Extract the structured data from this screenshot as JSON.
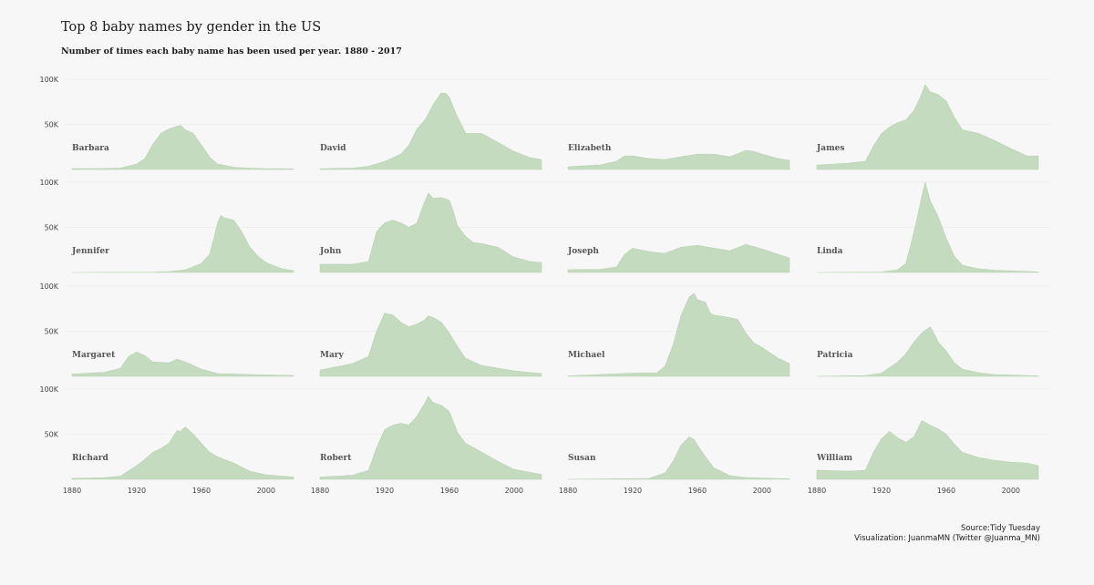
{
  "chart_data": {
    "type": "area",
    "title": "Top 8 baby names by gender in the US",
    "subtitle": "Number of times each baby name has been used per year. 1880 - 2017",
    "caption_source": "Source:Tidy Tuesday",
    "caption_credit": "Visualization: JuanmaMN (Twitter @Juanma_MN)",
    "x_range": [
      1880,
      2017
    ],
    "x_ticks": [
      1880,
      1920,
      1960,
      2000
    ],
    "y_range": [
      0,
      100000
    ],
    "y_ticks": [
      {
        "value": 100000,
        "label": "100K"
      },
      {
        "value": 50000,
        "label": "50K"
      }
    ],
    "grid": true,
    "layout": {
      "rows": 4,
      "cols": 4
    },
    "series": [
      {
        "name": "Barbara",
        "points": [
          [
            1880,
            1000
          ],
          [
            1900,
            1100
          ],
          [
            1910,
            1600
          ],
          [
            1920,
            6000
          ],
          [
            1925,
            12000
          ],
          [
            1930,
            28000
          ],
          [
            1935,
            40000
          ],
          [
            1940,
            45000
          ],
          [
            1947,
            49000
          ],
          [
            1950,
            44000
          ],
          [
            1955,
            40000
          ],
          [
            1960,
            27000
          ],
          [
            1965,
            14000
          ],
          [
            1970,
            6000
          ],
          [
            1980,
            2500
          ],
          [
            1990,
            1500
          ],
          [
            2000,
            900
          ],
          [
            2017,
            600
          ]
        ]
      },
      {
        "name": "David",
        "points": [
          [
            1880,
            800
          ],
          [
            1900,
            1500
          ],
          [
            1910,
            3500
          ],
          [
            1920,
            9000
          ],
          [
            1930,
            17000
          ],
          [
            1935,
            27000
          ],
          [
            1940,
            45000
          ],
          [
            1945,
            55000
          ],
          [
            1950,
            72000
          ],
          [
            1955,
            85000
          ],
          [
            1958,
            84000
          ],
          [
            1960,
            80000
          ],
          [
            1965,
            58000
          ],
          [
            1968,
            48000
          ],
          [
            1970,
            40000
          ],
          [
            1980,
            40000
          ],
          [
            1985,
            35000
          ],
          [
            1990,
            30000
          ],
          [
            2000,
            20000
          ],
          [
            2010,
            13000
          ],
          [
            2017,
            11000
          ]
        ]
      },
      {
        "name": "Elizabeth",
        "points": [
          [
            1880,
            3000
          ],
          [
            1900,
            5000
          ],
          [
            1910,
            9000
          ],
          [
            1915,
            15000
          ],
          [
            1920,
            15000
          ],
          [
            1930,
            12000
          ],
          [
            1940,
            11000
          ],
          [
            1950,
            14000
          ],
          [
            1960,
            17000
          ],
          [
            1970,
            17000
          ],
          [
            1980,
            14000
          ],
          [
            1990,
            21000
          ],
          [
            1995,
            20000
          ],
          [
            2000,
            17000
          ],
          [
            2010,
            12000
          ],
          [
            2017,
            10000
          ]
        ]
      },
      {
        "name": "James",
        "points": [
          [
            1880,
            5000
          ],
          [
            1900,
            7000
          ],
          [
            1910,
            9000
          ],
          [
            1915,
            26000
          ],
          [
            1920,
            40000
          ],
          [
            1925,
            47000
          ],
          [
            1930,
            52000
          ],
          [
            1935,
            55000
          ],
          [
            1940,
            65000
          ],
          [
            1944,
            80000
          ],
          [
            1947,
            94000
          ],
          [
            1950,
            86000
          ],
          [
            1955,
            83000
          ],
          [
            1960,
            76000
          ],
          [
            1965,
            58000
          ],
          [
            1970,
            44000
          ],
          [
            1980,
            40000
          ],
          [
            1990,
            32000
          ],
          [
            2000,
            23000
          ],
          [
            2010,
            15000
          ],
          [
            2017,
            15000
          ]
        ]
      },
      {
        "name": "Jennifer",
        "points": [
          [
            1880,
            0
          ],
          [
            1915,
            200
          ],
          [
            1930,
            300
          ],
          [
            1940,
            1000
          ],
          [
            1950,
            3000
          ],
          [
            1960,
            10000
          ],
          [
            1965,
            20000
          ],
          [
            1968,
            40000
          ],
          [
            1970,
            55000
          ],
          [
            1972,
            63000
          ],
          [
            1975,
            60000
          ],
          [
            1980,
            58000
          ],
          [
            1985,
            45000
          ],
          [
            1990,
            28000
          ],
          [
            1995,
            18000
          ],
          [
            2000,
            11000
          ],
          [
            2010,
            4000
          ],
          [
            2017,
            2000
          ]
        ]
      },
      {
        "name": "John",
        "points": [
          [
            1880,
            9000
          ],
          [
            1890,
            9000
          ],
          [
            1900,
            9000
          ],
          [
            1910,
            12000
          ],
          [
            1915,
            45000
          ],
          [
            1920,
            55000
          ],
          [
            1925,
            58000
          ],
          [
            1930,
            55000
          ],
          [
            1935,
            50000
          ],
          [
            1940,
            55000
          ],
          [
            1944,
            75000
          ],
          [
            1947,
            88000
          ],
          [
            1950,
            82000
          ],
          [
            1955,
            83000
          ],
          [
            1960,
            80000
          ],
          [
            1962,
            70000
          ],
          [
            1965,
            52000
          ],
          [
            1970,
            40000
          ],
          [
            1975,
            33000
          ],
          [
            1980,
            32000
          ],
          [
            1990,
            28000
          ],
          [
            2000,
            17000
          ],
          [
            2010,
            12000
          ],
          [
            2017,
            11000
          ]
        ]
      },
      {
        "name": "Joseph",
        "points": [
          [
            1880,
            3000
          ],
          [
            1900,
            3500
          ],
          [
            1910,
            6000
          ],
          [
            1915,
            20000
          ],
          [
            1920,
            27000
          ],
          [
            1930,
            23000
          ],
          [
            1940,
            21000
          ],
          [
            1950,
            28000
          ],
          [
            1960,
            30000
          ],
          [
            1970,
            27000
          ],
          [
            1980,
            24000
          ],
          [
            1990,
            31000
          ],
          [
            2000,
            26000
          ],
          [
            2010,
            20000
          ],
          [
            2017,
            16000
          ]
        ]
      },
      {
        "name": "Linda",
        "points": [
          [
            1880,
            0
          ],
          [
            1920,
            500
          ],
          [
            1930,
            3000
          ],
          [
            1935,
            10000
          ],
          [
            1938,
            30000
          ],
          [
            1942,
            60000
          ],
          [
            1945,
            85000
          ],
          [
            1947,
            100000
          ],
          [
            1950,
            80000
          ],
          [
            1955,
            62000
          ],
          [
            1960,
            38000
          ],
          [
            1965,
            18000
          ],
          [
            1970,
            8000
          ],
          [
            1980,
            4000
          ],
          [
            1990,
            2500
          ],
          [
            2017,
            600
          ]
        ]
      },
      {
        "name": "Margaret",
        "points": [
          [
            1880,
            2500
          ],
          [
            1900,
            4500
          ],
          [
            1910,
            9000
          ],
          [
            1915,
            22000
          ],
          [
            1920,
            27000
          ],
          [
            1925,
            23000
          ],
          [
            1930,
            16000
          ],
          [
            1940,
            15000
          ],
          [
            1945,
            19000
          ],
          [
            1950,
            16000
          ],
          [
            1960,
            8000
          ],
          [
            1970,
            3000
          ],
          [
            1990,
            2000
          ],
          [
            2017,
            1000
          ]
        ]
      },
      {
        "name": "Mary",
        "points": [
          [
            1880,
            7000
          ],
          [
            1900,
            14000
          ],
          [
            1910,
            22000
          ],
          [
            1915,
            50000
          ],
          [
            1920,
            70000
          ],
          [
            1925,
            68000
          ],
          [
            1930,
            60000
          ],
          [
            1935,
            55000
          ],
          [
            1940,
            58000
          ],
          [
            1945,
            63000
          ],
          [
            1947,
            67000
          ],
          [
            1950,
            65000
          ],
          [
            1955,
            60000
          ],
          [
            1960,
            48000
          ],
          [
            1965,
            33000
          ],
          [
            1970,
            20000
          ],
          [
            1980,
            12000
          ],
          [
            1990,
            9000
          ],
          [
            2000,
            6000
          ],
          [
            2017,
            3000
          ]
        ]
      },
      {
        "name": "Michael",
        "points": [
          [
            1880,
            500
          ],
          [
            1920,
            3500
          ],
          [
            1935,
            4000
          ],
          [
            1940,
            11000
          ],
          [
            1945,
            35000
          ],
          [
            1950,
            68000
          ],
          [
            1955,
            88000
          ],
          [
            1958,
            92000
          ],
          [
            1960,
            85000
          ],
          [
            1965,
            82000
          ],
          [
            1968,
            70000
          ],
          [
            1970,
            68000
          ],
          [
            1980,
            65000
          ],
          [
            1985,
            63000
          ],
          [
            1990,
            48000
          ],
          [
            1995,
            37000
          ],
          [
            2000,
            32000
          ],
          [
            2010,
            20000
          ],
          [
            2017,
            14000
          ]
        ]
      },
      {
        "name": "Patricia",
        "points": [
          [
            1880,
            0
          ],
          [
            1910,
            800
          ],
          [
            1920,
            3500
          ],
          [
            1930,
            16000
          ],
          [
            1935,
            25000
          ],
          [
            1940,
            38000
          ],
          [
            1945,
            48000
          ],
          [
            1950,
            55000
          ],
          [
            1953,
            46000
          ],
          [
            1955,
            38000
          ],
          [
            1960,
            28000
          ],
          [
            1965,
            15000
          ],
          [
            1970,
            8000
          ],
          [
            1980,
            4000
          ],
          [
            1990,
            2000
          ],
          [
            2017,
            500
          ]
        ]
      },
      {
        "name": "Richard",
        "points": [
          [
            1880,
            1000
          ],
          [
            1900,
            1800
          ],
          [
            1910,
            3500
          ],
          [
            1920,
            15000
          ],
          [
            1925,
            22000
          ],
          [
            1930,
            30000
          ],
          [
            1935,
            34000
          ],
          [
            1940,
            40000
          ],
          [
            1945,
            54000
          ],
          [
            1947,
            53000
          ],
          [
            1950,
            58000
          ],
          [
            1955,
            50000
          ],
          [
            1960,
            40000
          ],
          [
            1965,
            30000
          ],
          [
            1970,
            25000
          ],
          [
            1980,
            18000
          ],
          [
            1990,
            9000
          ],
          [
            2000,
            5000
          ],
          [
            2017,
            2500
          ]
        ]
      },
      {
        "name": "Robert",
        "points": [
          [
            1880,
            2500
          ],
          [
            1900,
            4500
          ],
          [
            1910,
            10000
          ],
          [
            1915,
            35000
          ],
          [
            1920,
            55000
          ],
          [
            1925,
            60000
          ],
          [
            1930,
            62000
          ],
          [
            1935,
            60000
          ],
          [
            1940,
            70000
          ],
          [
            1945,
            85000
          ],
          [
            1947,
            92000
          ],
          [
            1950,
            85000
          ],
          [
            1955,
            82000
          ],
          [
            1960,
            75000
          ],
          [
            1965,
            52000
          ],
          [
            1970,
            40000
          ],
          [
            1980,
            30000
          ],
          [
            1990,
            20000
          ],
          [
            2000,
            11000
          ],
          [
            2017,
            5500
          ]
        ]
      },
      {
        "name": "Susan",
        "points": [
          [
            1880,
            0
          ],
          [
            1930,
            1000
          ],
          [
            1940,
            7000
          ],
          [
            1945,
            20000
          ],
          [
            1950,
            38000
          ],
          [
            1955,
            47000
          ],
          [
            1958,
            44000
          ],
          [
            1960,
            38000
          ],
          [
            1965,
            25000
          ],
          [
            1970,
            13000
          ],
          [
            1980,
            4000
          ],
          [
            1990,
            2000
          ],
          [
            2017,
            500
          ]
        ]
      },
      {
        "name": "William",
        "points": [
          [
            1880,
            10000
          ],
          [
            1900,
            9000
          ],
          [
            1910,
            10000
          ],
          [
            1915,
            30000
          ],
          [
            1920,
            45000
          ],
          [
            1925,
            53000
          ],
          [
            1930,
            46000
          ],
          [
            1935,
            41000
          ],
          [
            1940,
            47000
          ],
          [
            1945,
            65000
          ],
          [
            1950,
            60000
          ],
          [
            1955,
            56000
          ],
          [
            1960,
            50000
          ],
          [
            1965,
            39000
          ],
          [
            1970,
            30000
          ],
          [
            1980,
            24000
          ],
          [
            1990,
            21000
          ],
          [
            2000,
            19000
          ],
          [
            2010,
            18000
          ],
          [
            2017,
            15000
          ]
        ]
      }
    ]
  }
}
